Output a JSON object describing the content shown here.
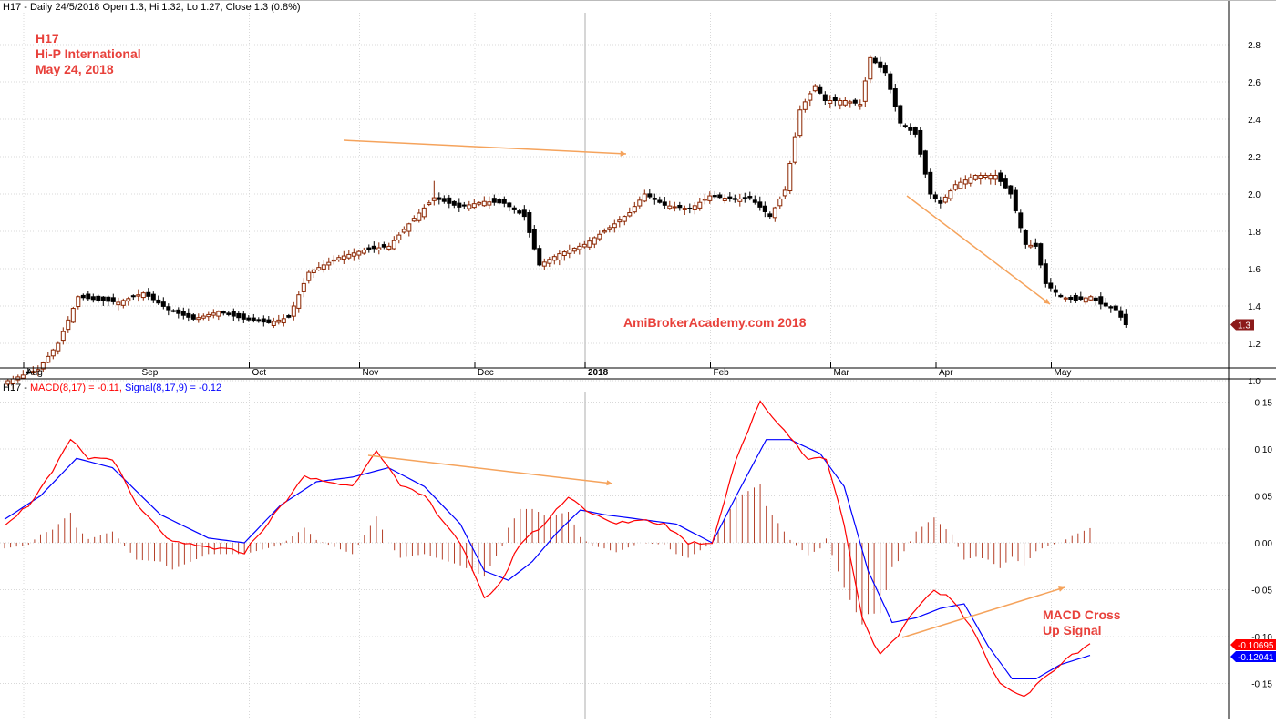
{
  "price_header": {
    "symbol": "H17",
    "ohlc_text": " - Daily 24/5/2018 Open 1.3, Hi 1.32, Lo 1.27, Close 1.3 (0.8%)"
  },
  "annotations": {
    "code": "H17",
    "company": "Hi-P International",
    "date": "May 24, 2018",
    "watermark": "AmiBrokerAcademy.com  2018",
    "macd_note_line1": "MACD Cross",
    "macd_note_line2": "Up Signal"
  },
  "macd_header": {
    "symbol": "H17",
    "macd_text": "MACD(8,17) = -0.11,",
    "signal_text": "Signal(8,17,9) = -0.12"
  },
  "colors": {
    "up_candle": "#8b2500",
    "down_candle": "#000000",
    "macd_line": "#ff0000",
    "signal_line": "#0000ff",
    "histogram": "#b5412a",
    "arrows": "#f5a35c",
    "last_price_badge": "#8b1a1a",
    "macd_badge": "#ff0000",
    "signal_badge": "#0000ff",
    "grid": "#d8d8d8"
  },
  "chart_data": [
    {
      "type": "candlestick",
      "title": "",
      "ylim": [
        0.93,
        2.86
      ],
      "y_ticks": [
        "1.0",
        "1.2",
        "1.4",
        "1.6",
        "1.8",
        "2.0",
        "2.2",
        "2.4",
        "2.6",
        "2.8"
      ],
      "x_tick_labels": [
        "Aug",
        "Sep",
        "Oct",
        "Nov",
        "Dec",
        "2018",
        "Feb",
        "Mar",
        "Apr",
        "May"
      ],
      "last_price_label": "1.3",
      "anchors": [
        [
          0,
          1.0
        ],
        [
          6,
          1.06
        ],
        [
          10,
          1.2
        ],
        [
          14,
          1.45
        ],
        [
          18,
          1.43
        ],
        [
          22,
          1.42
        ],
        [
          27,
          1.47
        ],
        [
          32,
          1.38
        ],
        [
          37,
          1.33
        ],
        [
          42,
          1.37
        ],
        [
          47,
          1.33
        ],
        [
          52,
          1.31
        ],
        [
          56,
          1.34
        ],
        [
          60,
          1.58
        ],
        [
          66,
          1.66
        ],
        [
          71,
          1.7
        ],
        [
          76,
          1.72
        ],
        [
          81,
          1.87
        ],
        [
          85,
          1.98
        ],
        [
          90,
          1.93
        ],
        [
          95,
          1.96
        ],
        [
          99,
          1.95
        ],
        [
          103,
          1.88
        ],
        [
          106,
          1.62
        ],
        [
          110,
          1.68
        ],
        [
          115,
          1.73
        ],
        [
          120,
          1.82
        ],
        [
          124,
          1.9
        ],
        [
          127,
          2.0
        ],
        [
          131,
          1.94
        ],
        [
          136,
          1.92
        ],
        [
          140,
          1.99
        ],
        [
          145,
          1.97
        ],
        [
          148,
          1.98
        ],
        [
          152,
          1.88
        ],
        [
          155,
          2.02
        ],
        [
          158,
          2.45
        ],
        [
          161,
          2.58
        ],
        [
          163,
          2.5
        ],
        [
          167,
          2.5
        ],
        [
          170,
          2.48
        ],
        [
          172,
          2.73
        ],
        [
          175,
          2.65
        ],
        [
          178,
          2.38
        ],
        [
          181,
          2.32
        ],
        [
          184,
          2.0
        ],
        [
          186,
          1.95
        ],
        [
          189,
          2.05
        ],
        [
          193,
          2.1
        ],
        [
          197,
          2.1
        ],
        [
          200,
          2.0
        ],
        [
          203,
          1.73
        ],
        [
          205,
          1.72
        ],
        [
          207,
          1.52
        ],
        [
          210,
          1.45
        ],
        [
          213,
          1.43
        ],
        [
          216,
          1.45
        ],
        [
          218,
          1.41
        ],
        [
          221,
          1.38
        ],
        [
          223,
          1.3
        ]
      ],
      "highlight": {
        "index": 85,
        "high": 2.07
      }
    },
    {
      "type": "macd",
      "title": "",
      "ylim": [
        -0.185,
        0.165
      ],
      "y_ticks": [
        "0.15",
        "0.10",
        "0.05",
        "0.00",
        "-0.05",
        "-0.10",
        "-0.15"
      ],
      "macd_badge": "-0.10695",
      "signal_badge": "-0.12041",
      "macd_anchors": [
        [
          0,
          0.02
        ],
        [
          4,
          0.04
        ],
        [
          8,
          0.075
        ],
        [
          11,
          0.11
        ],
        [
          14,
          0.09
        ],
        [
          18,
          0.09
        ],
        [
          22,
          0.04
        ],
        [
          28,
          0.0
        ],
        [
          34,
          -0.005
        ],
        [
          40,
          -0.01
        ],
        [
          45,
          0.03
        ],
        [
          50,
          0.07
        ],
        [
          54,
          0.065
        ],
        [
          58,
          0.06
        ],
        [
          62,
          0.1
        ],
        [
          66,
          0.06
        ],
        [
          70,
          0.05
        ],
        [
          76,
          0.0
        ],
        [
          80,
          -0.06
        ],
        [
          83,
          -0.04
        ],
        [
          86,
          0.0
        ],
        [
          90,
          0.02
        ],
        [
          94,
          0.05
        ],
        [
          98,
          0.03
        ],
        [
          102,
          0.02
        ],
        [
          106,
          0.025
        ],
        [
          110,
          0.02
        ],
        [
          114,
          0.0
        ],
        [
          118,
          0.0
        ],
        [
          122,
          0.09
        ],
        [
          126,
          0.15
        ],
        [
          130,
          0.12
        ],
        [
          134,
          0.09
        ],
        [
          137,
          0.09
        ],
        [
          140,
          0.02
        ],
        [
          143,
          -0.08
        ],
        [
          146,
          -0.12
        ],
        [
          149,
          -0.1
        ],
        [
          152,
          -0.07
        ],
        [
          155,
          -0.05
        ],
        [
          158,
          -0.06
        ],
        [
          162,
          -0.1
        ],
        [
          166,
          -0.15
        ],
        [
          170,
          -0.165
        ],
        [
          174,
          -0.14
        ],
        [
          178,
          -0.12
        ],
        [
          181,
          -0.107
        ]
      ],
      "signal_anchors": [
        [
          0,
          0.025
        ],
        [
          6,
          0.05
        ],
        [
          12,
          0.09
        ],
        [
          18,
          0.08
        ],
        [
          26,
          0.03
        ],
        [
          34,
          0.005
        ],
        [
          40,
          0.0
        ],
        [
          46,
          0.04
        ],
        [
          52,
          0.065
        ],
        [
          58,
          0.07
        ],
        [
          64,
          0.08
        ],
        [
          70,
          0.06
        ],
        [
          76,
          0.02
        ],
        [
          80,
          -0.03
        ],
        [
          84,
          -0.04
        ],
        [
          88,
          -0.02
        ],
        [
          92,
          0.01
        ],
        [
          96,
          0.035
        ],
        [
          100,
          0.03
        ],
        [
          106,
          0.025
        ],
        [
          112,
          0.02
        ],
        [
          118,
          0.0
        ],
        [
          122,
          0.05
        ],
        [
          127,
          0.11
        ],
        [
          131,
          0.11
        ],
        [
          136,
          0.095
        ],
        [
          140,
          0.06
        ],
        [
          144,
          -0.03
        ],
        [
          148,
          -0.085
        ],
        [
          152,
          -0.08
        ],
        [
          156,
          -0.07
        ],
        [
          160,
          -0.065
        ],
        [
          164,
          -0.11
        ],
        [
          168,
          -0.145
        ],
        [
          172,
          -0.145
        ],
        [
          176,
          -0.13
        ],
        [
          181,
          -0.12
        ]
      ]
    }
  ]
}
